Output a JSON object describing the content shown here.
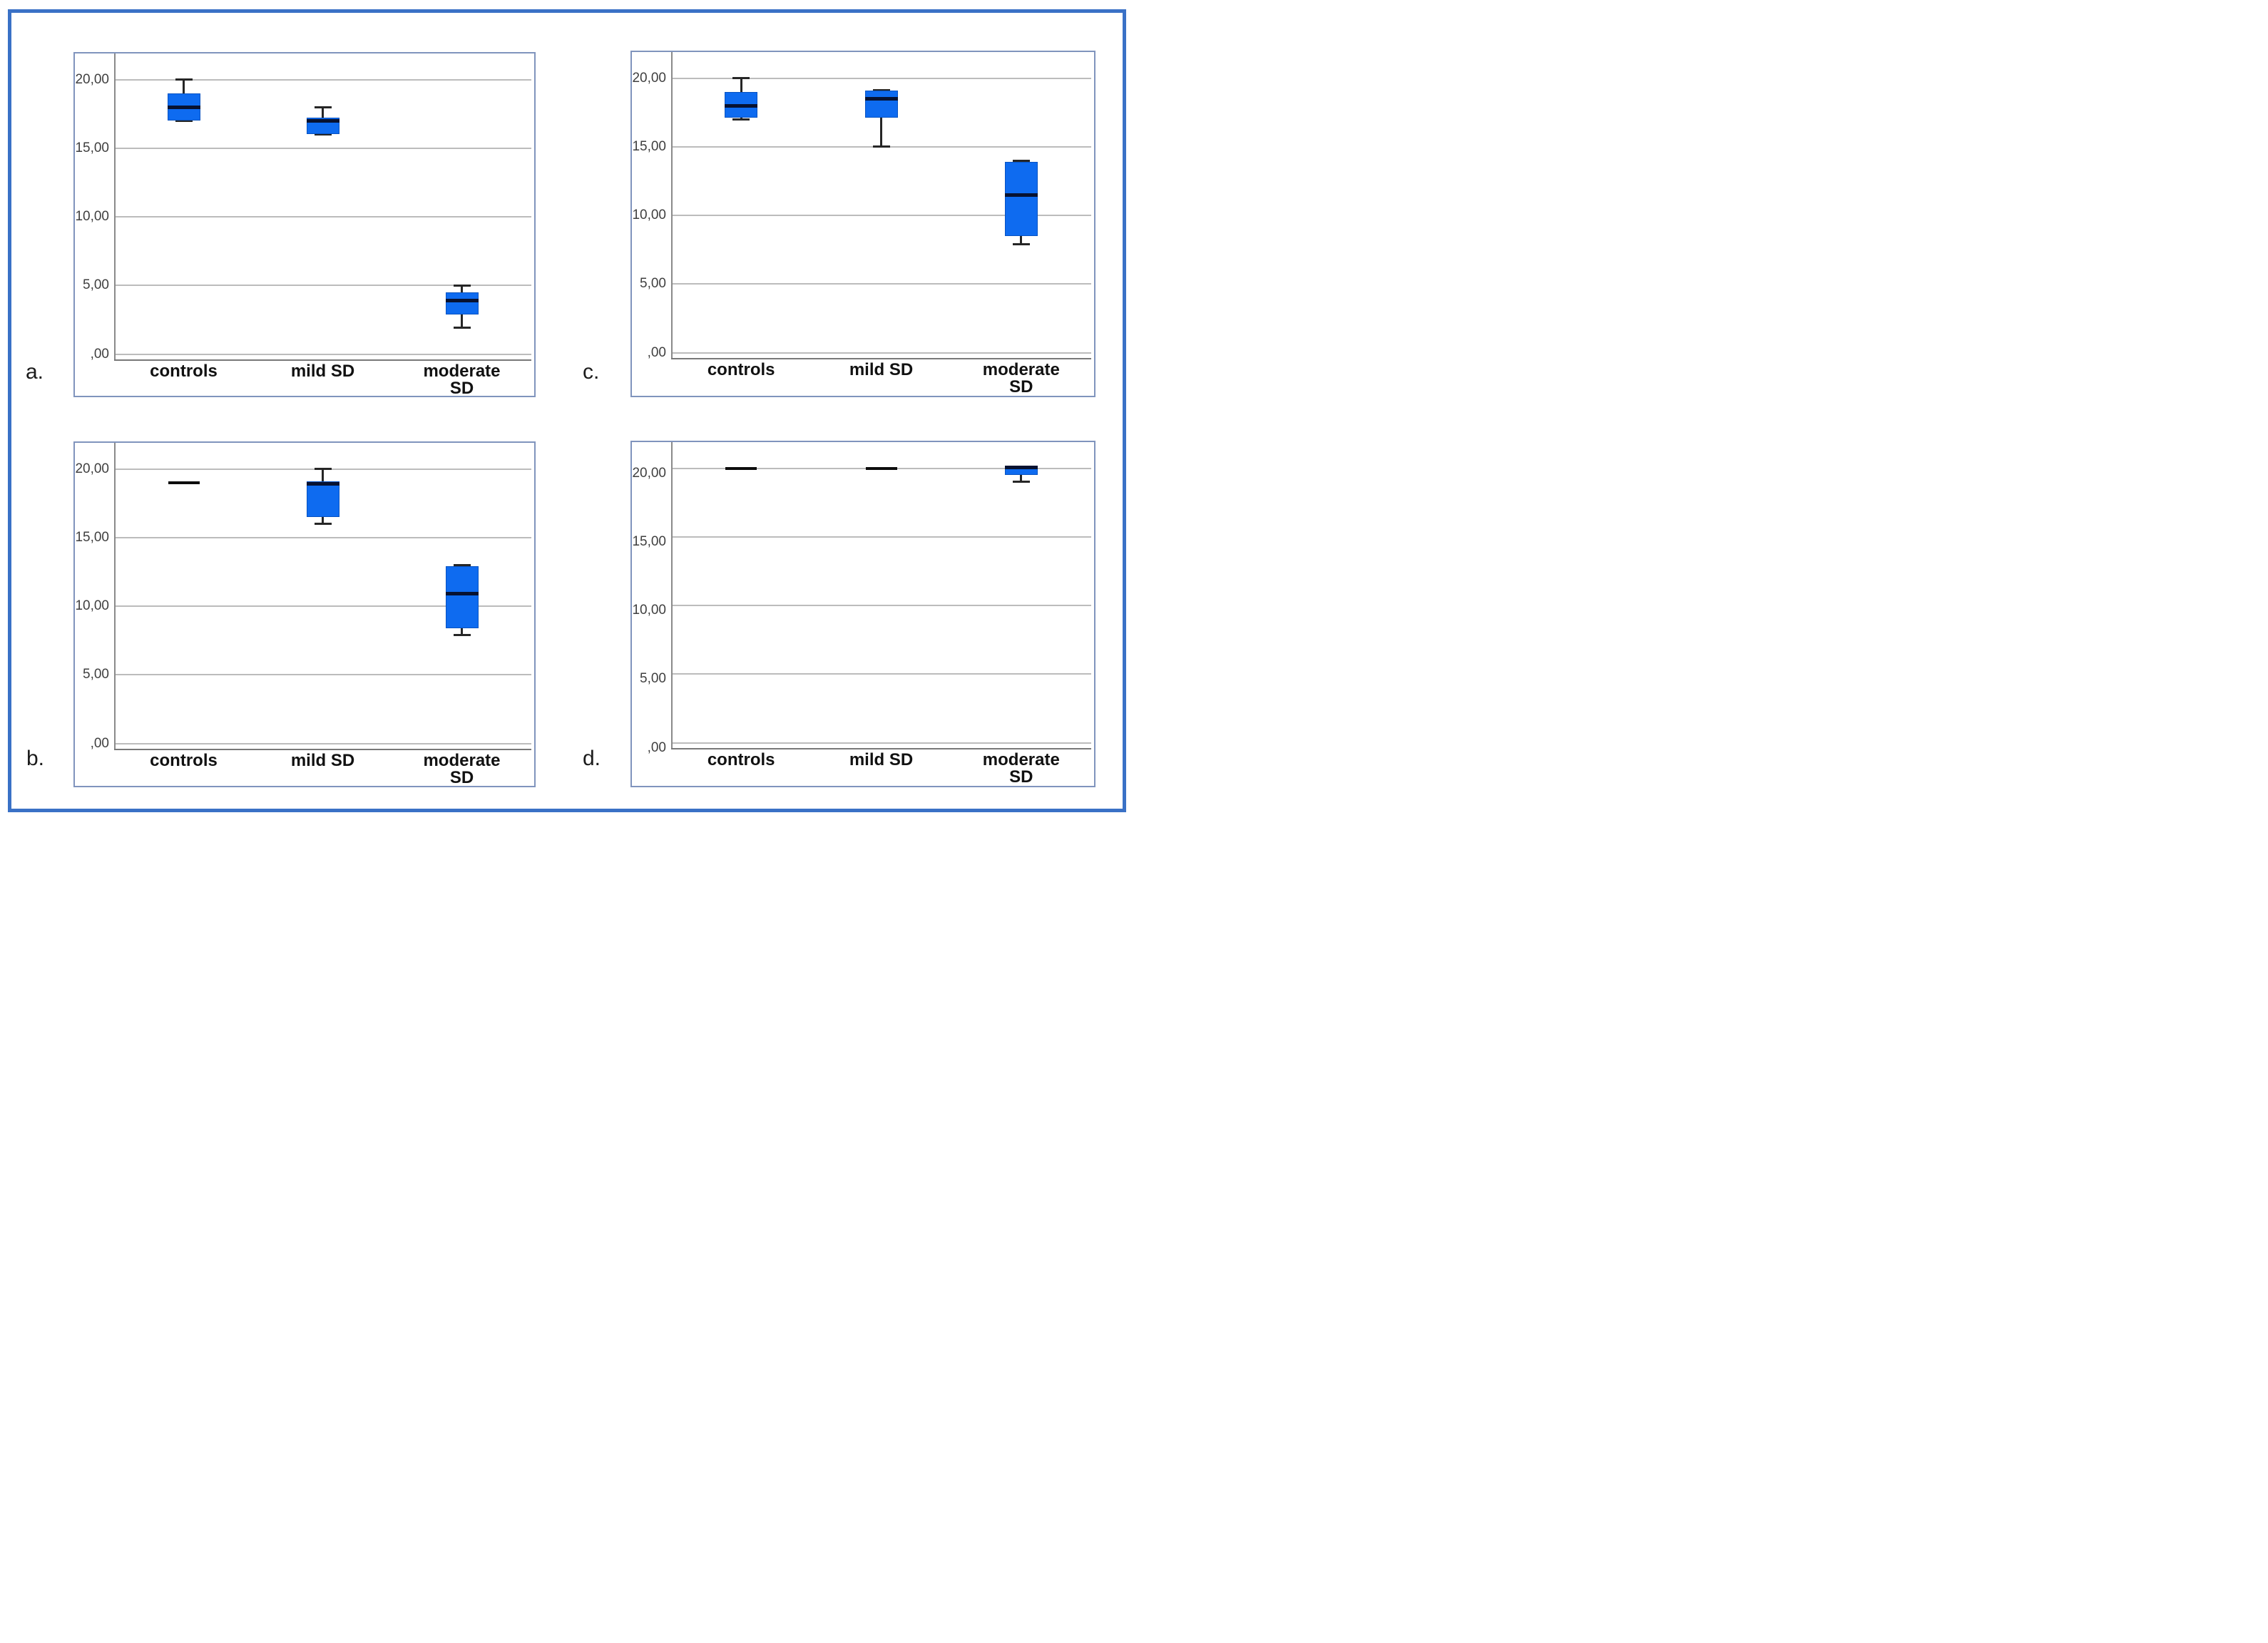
{
  "figure": {
    "colors": {
      "outer_border": "#3a71c6",
      "panel_border": "#8094bd",
      "box_fill": "#0e6bf0",
      "box_edge": "#0853c2",
      "median": "#071231",
      "whisker": "#262626",
      "gridline": "#bcbcbc",
      "axis": "#8a8a8a",
      "tick_text": "#3f3f3f"
    }
  },
  "chart_data": [
    {
      "id": "a",
      "panel_label": "a.",
      "type": "box",
      "grid": true,
      "legend": "none",
      "categories": [
        "controls",
        "mild SD",
        "moderate SD"
      ],
      "yticks": [
        {
          "value": 20,
          "label": "20,00"
        },
        {
          "value": 15,
          "label": "15,00"
        },
        {
          "value": 10,
          "label": "10,00"
        },
        {
          "value": 5,
          "label": "5,00"
        },
        {
          "value": 0,
          "label": ",00"
        }
      ],
      "ylim": [
        0,
        22.4
      ],
      "series": [
        {
          "category": "controls",
          "whisker_low": 17.0,
          "q1": 17.0,
          "median": 18.0,
          "q3": 19.0,
          "whisker_high": 20.0
        },
        {
          "category": "mild SD",
          "whisker_low": 16.0,
          "q1": 16.0,
          "median": 17.0,
          "q3": 17.2,
          "whisker_high": 18.0
        },
        {
          "category": "moderate SD",
          "whisker_low": 1.9,
          "q1": 2.9,
          "median": 3.9,
          "q3": 4.5,
          "whisker_high": 5.0
        }
      ]
    },
    {
      "id": "b",
      "panel_label": "b.",
      "type": "box",
      "grid": true,
      "legend": "none",
      "categories": [
        "controls",
        "mild SD",
        "moderate SD"
      ],
      "yticks": [
        {
          "value": 20,
          "label": "20,00"
        },
        {
          "value": 15,
          "label": "15,00"
        },
        {
          "value": 10,
          "label": "10,00"
        },
        {
          "value": 5,
          "label": "5,00"
        },
        {
          "value": 0,
          "label": ",00"
        }
      ],
      "ylim": [
        0,
        22.4
      ],
      "series": [
        {
          "category": "controls",
          "median": 19.0,
          "line_only": true
        },
        {
          "category": "mild SD",
          "whisker_low": 16.0,
          "q1": 16.5,
          "median": 18.9,
          "q3": 19.1,
          "whisker_high": 20.0
        },
        {
          "category": "moderate SD",
          "whisker_low": 7.9,
          "q1": 8.4,
          "median": 10.9,
          "q3": 12.9,
          "whisker_high": 13.0
        }
      ]
    },
    {
      "id": "c",
      "panel_label": "c.",
      "type": "box",
      "grid": true,
      "legend": "none",
      "categories": [
        "controls",
        "mild SD",
        "moderate SD"
      ],
      "yticks": [
        {
          "value": 20,
          "label": "20,00"
        },
        {
          "value": 15,
          "label": "15,00"
        },
        {
          "value": 10,
          "label": "10,00"
        },
        {
          "value": 5,
          "label": "5,00"
        },
        {
          "value": 0,
          "label": ",00"
        }
      ],
      "ylim": [
        0,
        22.4
      ],
      "series": [
        {
          "category": "controls",
          "whisker_low": 17.0,
          "q1": 17.1,
          "median": 18.0,
          "q3": 19.0,
          "whisker_high": 20.0
        },
        {
          "category": "mild SD",
          "whisker_low": 15.0,
          "q1": 17.1,
          "median": 18.5,
          "q3": 19.1,
          "whisker_high": 19.1
        },
        {
          "category": "moderate SD",
          "whisker_low": 7.9,
          "q1": 8.5,
          "median": 11.5,
          "q3": 13.9,
          "whisker_high": 14.0
        }
      ]
    },
    {
      "id": "d",
      "panel_label": "d.",
      "type": "box",
      "grid": true,
      "legend": "none",
      "categories": [
        "controls",
        "mild SD",
        "moderate SD"
      ],
      "yticks": [
        {
          "value": 20,
          "label": "20,00"
        },
        {
          "value": 15,
          "label": "15,00"
        },
        {
          "value": 10,
          "label": "10,00"
        },
        {
          "value": 5,
          "label": "5,00"
        },
        {
          "value": 0,
          "label": ",00"
        }
      ],
      "ylim": [
        0,
        22.4
      ],
      "series": [
        {
          "category": "controls",
          "median": 20.0,
          "line_only": true
        },
        {
          "category": "mild SD",
          "median": 20.0,
          "line_only": true
        },
        {
          "category": "moderate SD",
          "whisker_low": 19.0,
          "q1": 19.5,
          "median": 20.05,
          "q3": 20.1,
          "whisker_high": 20.1
        }
      ]
    }
  ]
}
